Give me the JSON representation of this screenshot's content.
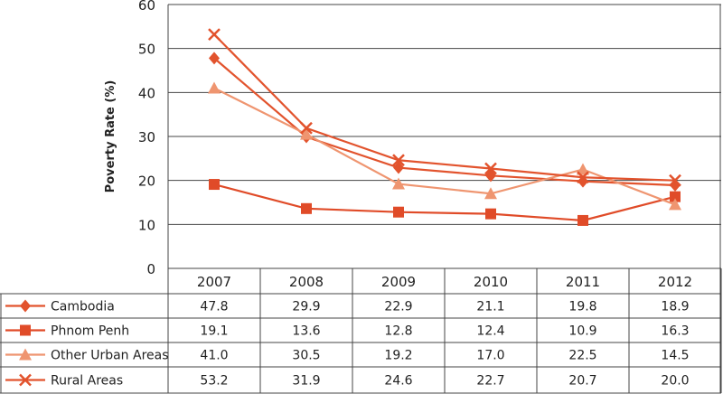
{
  "chart_data": {
    "type": "line",
    "ylabel": "Poverty Rate (%)",
    "ylim": [
      0,
      60
    ],
    "yticks": [
      "0",
      "10",
      "20",
      "30",
      "40",
      "50",
      "60"
    ],
    "categories": [
      "2007",
      "2008",
      "2009",
      "2010",
      "2011",
      "2012"
    ],
    "grid": true,
    "legend": "data-table-below",
    "series": [
      {
        "name": "Cambodia",
        "marker": "diamond",
        "color": "#e2532d",
        "values": [
          47.8,
          29.9,
          22.9,
          21.1,
          19.8,
          18.9
        ],
        "labels": [
          "47.8",
          "29.9",
          "22.9",
          "21.1",
          "19.8",
          "18.9"
        ]
      },
      {
        "name": "Phnom Penh",
        "marker": "square",
        "color": "#e04b28",
        "values": [
          19.1,
          13.6,
          12.8,
          12.4,
          10.9,
          16.3
        ],
        "labels": [
          "19.1",
          "13.6",
          "12.8",
          "12.4",
          "10.9",
          "16.3"
        ]
      },
      {
        "name": "Other Urban Areas",
        "marker": "triangle",
        "color": "#ef9570",
        "values": [
          41.0,
          30.5,
          19.2,
          17.0,
          22.5,
          14.5
        ],
        "labels": [
          "41.0",
          "30.5",
          "19.2",
          "17.0",
          "22.5",
          "14.5"
        ]
      },
      {
        "name": "Rural Areas",
        "marker": "x",
        "color": "#e2532d",
        "values": [
          53.2,
          31.9,
          24.6,
          22.7,
          20.7,
          20.0
        ],
        "labels": [
          "53.2",
          "31.9",
          "24.6",
          "22.7",
          "20.7",
          "20.0"
        ]
      }
    ]
  }
}
